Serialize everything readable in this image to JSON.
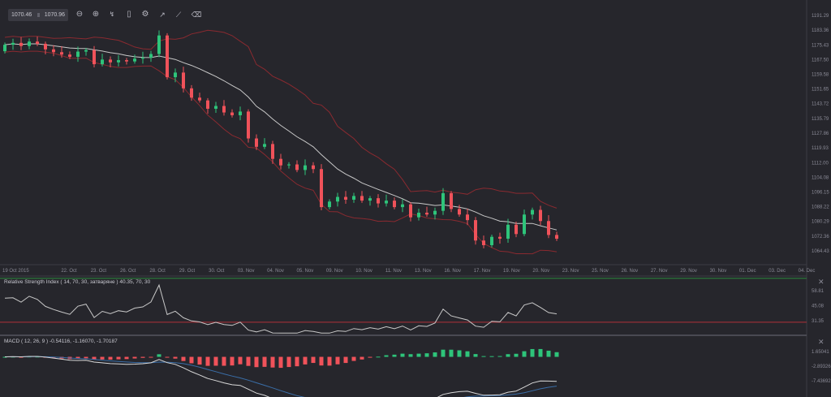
{
  "toolbar": {
    "range_from": "1070.46",
    "range_to": "1070.96",
    "icons": [
      "zoom-out-icon",
      "zoom-in-icon",
      "crosshair-icon",
      "candle-type-icon",
      "settings-icon",
      "indicators-icon",
      "drawing-line-icon",
      "eraser-icon"
    ]
  },
  "colors": {
    "background": "#26262c",
    "up": "#2ec47a",
    "down": "#f0525a",
    "bands": "#8a2a30",
    "sma": "#c8c8c8",
    "rsi_upper": "#2e8b3e",
    "rsi_lower": "#b03038",
    "macd_line": "#d8d8d8",
    "signal_line": "#3a6ea8"
  },
  "chart_data": [
    {
      "type": "candlestick",
      "price_axis": {
        "ticks": [
          "1191.29",
          "1183.36",
          "1175.43",
          "1167.50",
          "1159.58",
          "1151.65",
          "1143.72",
          "1135.79",
          "1127.86",
          "1119.93",
          "1112.00",
          "1104.08",
          "1096.15",
          "1088.22",
          "1080.29",
          "1072.36",
          "1064.43"
        ],
        "range": [
          1064.43,
          1191.29
        ]
      },
      "time_axis": {
        "ticks": [
          "19 Oct 2015",
          "22. Oct",
          "23. Oct",
          "26. Oct",
          "28. Oct",
          "29. Oct",
          "30. Oct",
          "03. Nov",
          "04. Nov",
          "05. Nov",
          "09. Nov",
          "10. Nov",
          "11. Nov",
          "13. Nov",
          "16. Nov",
          "17. Nov",
          "19. Nov",
          "20. Nov",
          "23. Nov",
          "25. Nov",
          "26. Nov",
          "27. Nov",
          "29. Nov",
          "30. Nov",
          "01. Dec",
          "03. Dec",
          "04. Dec"
        ]
      },
      "overlays": [
        "bollinger-bands",
        "moving-average"
      ],
      "closes": [
        1175.5,
        1176.5,
        1174.8,
        1177.2,
        1176.0,
        1173.0,
        1171.5,
        1170.2,
        1169.0,
        1171.8,
        1172.6,
        1165.0,
        1167.5,
        1166.0,
        1167.2,
        1166.5,
        1168.0,
        1168.5,
        1170.5,
        1180.5,
        1158.0,
        1160.5,
        1152.0,
        1147.0,
        1145.5,
        1141.0,
        1142.5,
        1139.0,
        1137.5,
        1139.5,
        1125.0,
        1120.5,
        1122.0,
        1114.0,
        1110.5,
        1111.0,
        1108.0,
        1110.5,
        1108.5,
        1088.0,
        1091.0,
        1093.5,
        1092.0,
        1094.0,
        1091.5,
        1092.8,
        1090.0,
        1091.5,
        1088.0,
        1089.5,
        1082.5,
        1085.0,
        1084.0,
        1086.0,
        1095.5,
        1087.0,
        1084.0,
        1081.0,
        1070.0,
        1067.5,
        1072.0,
        1071.0,
        1078.5,
        1073.5,
        1084.0,
        1086.5,
        1080.5,
        1073.0,
        1070.96
      ],
      "first_open": 1172.0
    },
    {
      "type": "line",
      "title": "Relative Strength Index ( 14, 70, 30, затваряне ) 40.35, 70, 30",
      "period": 14,
      "upper": 70,
      "lower": 30,
      "last": 40.35,
      "ticks": [
        "58.81",
        "45.08",
        "31.35"
      ]
    },
    {
      "type": "line",
      "title": "MACD ( 12, 26, 9 ) -0.54116, -1.16070, -1.70187",
      "params": [
        12,
        26,
        9
      ],
      "ticks": [
        "1.65041",
        "-2.89326",
        "-7.43692"
      ]
    }
  ]
}
